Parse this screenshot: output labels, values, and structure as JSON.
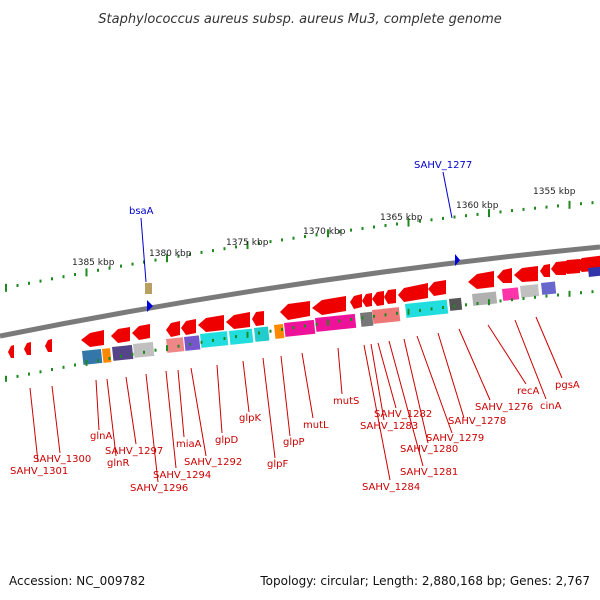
{
  "title": "Staphylococcus aureus subsp. aureus Mu3, complete genome",
  "footer": {
    "accession": "Accession: NC_009782",
    "summary": "Topology: circular; Length: 2,880,168 bp; Genes: 2,767"
  },
  "colors": {
    "backbone": "#7a7a7a",
    "tick": "#1e8a1e",
    "arrow": "#ee0000",
    "label_red": "#cc0000",
    "label_blue": "#0000cc"
  },
  "scale_labels": [
    "1385 kbp",
    "1380 kbp",
    "1375 kbp",
    "1370 kbp",
    "1365 kbp",
    "1360 kbp",
    "1355 kbp"
  ],
  "top_labels": [
    "bsaA",
    "SAHV_1277"
  ],
  "bottom_labels": [
    "SAHV_1301",
    "SAHV_1300",
    "glnA",
    "glnR",
    "SAHV_1297",
    "SAHV_1296",
    "SAHV_1294",
    "miaA",
    "SAHV_1292",
    "glpD",
    "glpK",
    "glpF",
    "glpP",
    "mutL",
    "mutS",
    "SAHV_1284",
    "SAHV_1283",
    "SAHV_1282",
    "SAHV_1281",
    "SAHV_1280",
    "SAHV_1279",
    "SAHV_1278",
    "SAHV_1276",
    "recA",
    "cinA",
    "pgsA"
  ]
}
